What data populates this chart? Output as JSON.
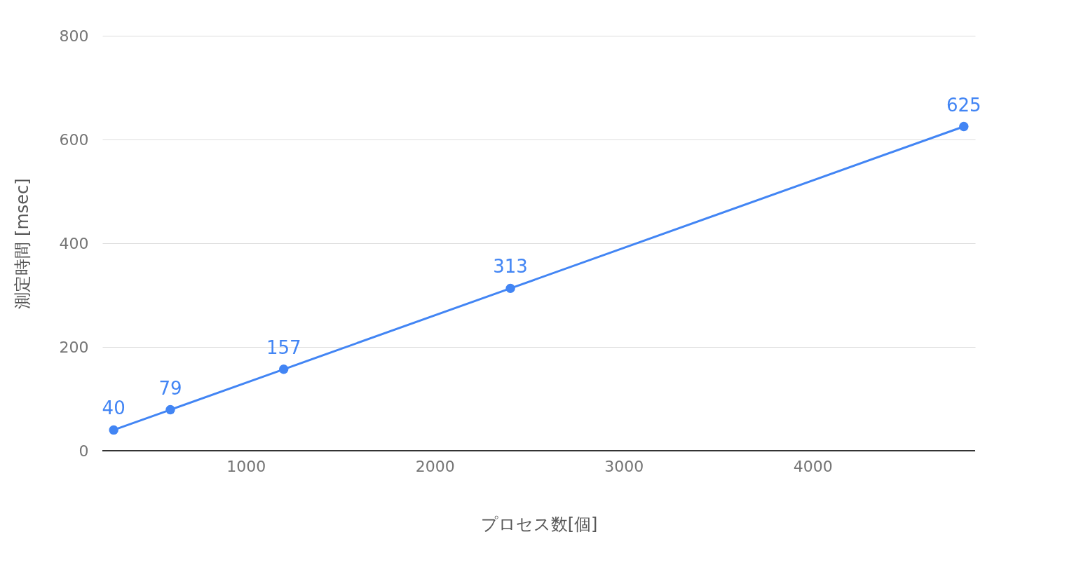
{
  "chart_data": {
    "type": "line",
    "xlabel": "プロセス数[個]",
    "ylabel": "測定時間 [msec]",
    "x": [
      300,
      600,
      1200,
      2400,
      4800
    ],
    "series": [
      {
        "color": "#4285f4",
        "values": [
          40,
          79,
          157,
          313,
          625
        ]
      }
    ],
    "xlim": [
      240,
      4860
    ],
    "xticks": [
      1000,
      2000,
      3000,
      4000
    ],
    "ylim": [
      0,
      800
    ],
    "yticks": [
      0,
      200,
      400,
      600,
      800
    ],
    "grid": "y",
    "marker": "circle",
    "line_style": "solid",
    "data_labels": true,
    "legend": false
  }
}
